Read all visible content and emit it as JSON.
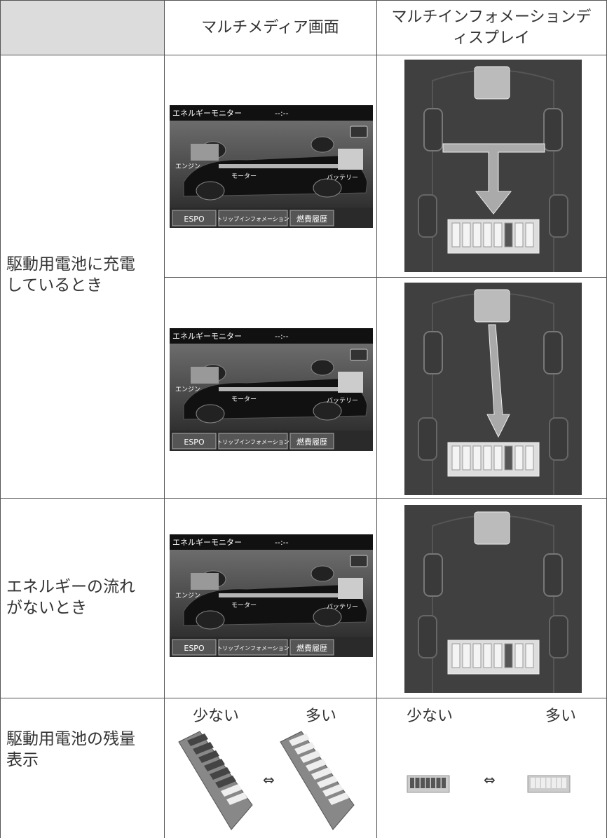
{
  "header": {
    "col2": "マルチメディア画面",
    "col3": "マルチインフォメーションディスプレイ"
  },
  "rows": [
    {
      "label": "駆動用電池に充電しているとき"
    },
    {
      "label": "エネルギーの流れがないとき"
    },
    {
      "label": "駆動用電池の残量表示"
    }
  ],
  "screen": {
    "title": "エネルギーモニター",
    "clock": "--:--",
    "engine": "エンジン",
    "motor": "モーター",
    "battery": "バッテリー",
    "tabs": [
      "ESPO",
      "トリップインフォメーション",
      "燃費履歴"
    ]
  },
  "gauge": {
    "few": "少ない",
    "many": "多い",
    "arrow": "⇔"
  }
}
